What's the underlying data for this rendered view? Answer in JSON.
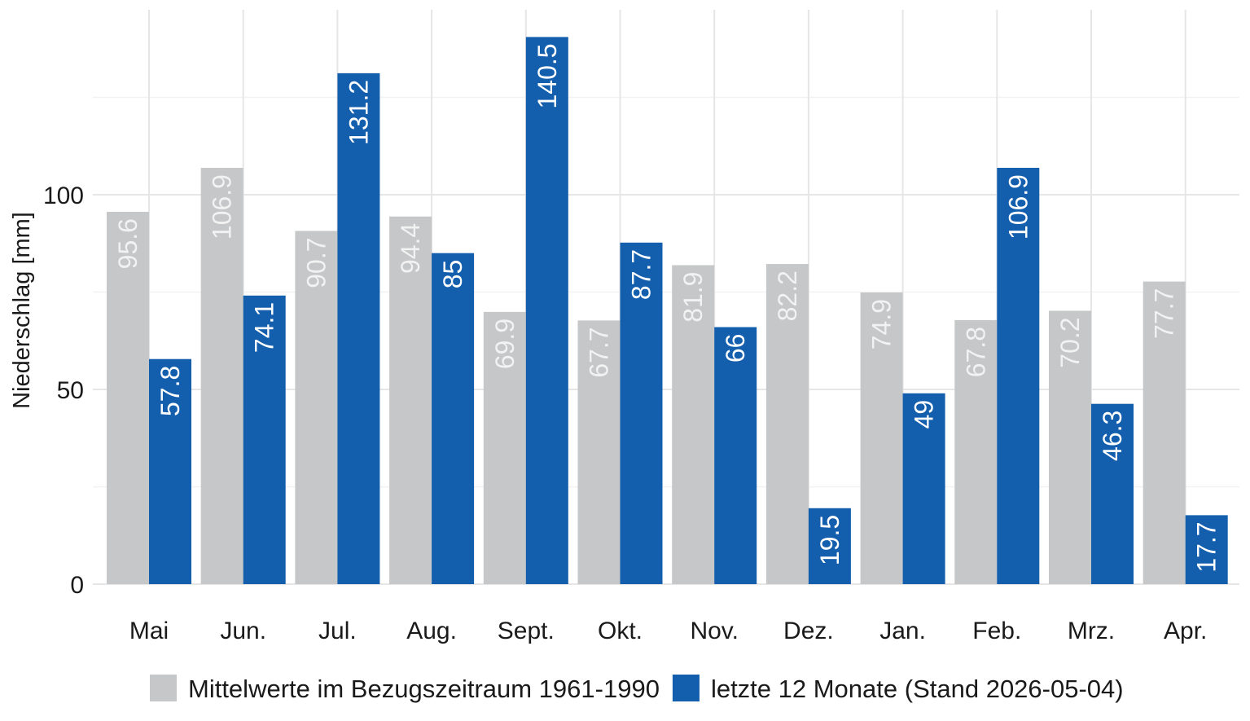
{
  "chart_data": {
    "type": "bar",
    "ylabel": "Niederschlag [mm]",
    "xlabel": "",
    "ylim": [
      0,
      140.5
    ],
    "yticks": [
      0,
      50,
      100
    ],
    "grid": true,
    "legend_position": "bottom",
    "categories": [
      "Mai",
      "Jun.",
      "Jul.",
      "Aug.",
      "Sept.",
      "Okt.",
      "Nov.",
      "Dez.",
      "Jan.",
      "Feb.",
      "Mrz.",
      "Apr."
    ],
    "series": [
      {
        "name": "Mittelwerte im Bezugszeitraum 1961-1990",
        "color": "#c5c7c8",
        "label_color": "#f2f2f2",
        "values": [
          95.6,
          106.9,
          90.7,
          94.4,
          69.9,
          67.7,
          81.9,
          82.2,
          74.9,
          67.8,
          70.2,
          77.7
        ]
      },
      {
        "name": "letzte 12 Monate (Stand 2026-05-04)",
        "color": "#135ead",
        "label_color": "#ffffff",
        "values": [
          57.8,
          74.1,
          131.2,
          85,
          140.5,
          87.7,
          66,
          19.5,
          49,
          106.9,
          46.3,
          17.7
        ]
      }
    ]
  }
}
